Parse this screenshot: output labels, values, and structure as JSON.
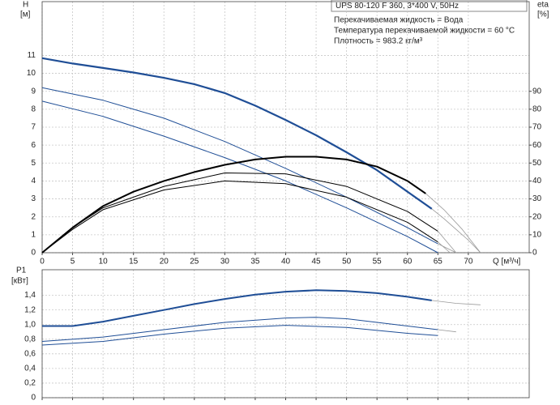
{
  "chart_data": [
    {
      "type": "line",
      "title": "UPS 80-120 F 360, 3*400 V, 50Hz",
      "annotations": [
        "Перекачиваемая жидкость = Вода",
        "Температура перекачиваемой жидкости = 60 °C",
        "Плотность = 983.2 кг/м³"
      ],
      "y_label": [
        "H",
        "[м]"
      ],
      "y2_label": [
        "eta",
        "[%]"
      ],
      "x_label": "Q [м³/ч]",
      "xlim": [
        0,
        80
      ],
      "xticks": [
        0,
        5,
        10,
        15,
        20,
        25,
        30,
        35,
        40,
        45,
        50,
        55,
        60,
        65,
        70
      ],
      "ylim": [
        0,
        14
      ],
      "yticks": [
        0,
        1,
        2,
        3,
        4,
        5,
        6,
        7,
        8,
        9,
        10,
        11
      ],
      "y2lim": [
        0,
        140
      ],
      "y2ticks": [
        0,
        10,
        20,
        30,
        40,
        50,
        60,
        70,
        80,
        90
      ],
      "grid": true,
      "series": [
        {
          "color": "#1f4e96",
          "width": 2.2,
          "axis": "y",
          "x": [
            0,
            5,
            10,
            15,
            20,
            25,
            30,
            35,
            40,
            45,
            50,
            55,
            60,
            64
          ],
          "values": [
            10.85,
            10.55,
            10.3,
            10.05,
            9.75,
            9.4,
            8.9,
            8.2,
            7.4,
            6.55,
            5.6,
            4.6,
            3.4,
            2.45
          ]
        },
        {
          "color": "#999999",
          "width": 0.8,
          "axis": "y",
          "x": [
            64,
            66,
            68,
            70,
            72
          ],
          "values": [
            2.45,
            1.9,
            1.3,
            0.7,
            0
          ]
        },
        {
          "color": "#1f4e96",
          "width": 1,
          "axis": "y",
          "x": [
            0,
            10,
            20,
            30,
            40,
            50,
            60,
            65
          ],
          "values": [
            9.2,
            8.5,
            7.5,
            6.2,
            4.7,
            3.1,
            1.4,
            0.5
          ]
        },
        {
          "color": "#999999",
          "width": 0.8,
          "axis": "y",
          "x": [
            65,
            68
          ],
          "values": [
            0.5,
            0
          ]
        },
        {
          "color": "#1f4e96",
          "width": 1,
          "axis": "y",
          "x": [
            0,
            10,
            20,
            30,
            40,
            50,
            60,
            65
          ],
          "values": [
            8.45,
            7.6,
            6.5,
            5.3,
            4.0,
            2.5,
            0.9,
            0
          ]
        },
        {
          "color": "#000000",
          "width": 2,
          "axis": "y2",
          "x": [
            0,
            5,
            10,
            15,
            20,
            25,
            30,
            35,
            40,
            45,
            50,
            55,
            60,
            63
          ],
          "values": [
            0,
            14,
            26,
            34,
            40,
            45,
            49,
            52,
            53.5,
            53.5,
            52,
            48,
            40,
            33
          ]
        },
        {
          "color": "#999999",
          "width": 0.8,
          "axis": "y2",
          "x": [
            63,
            66,
            69,
            72
          ],
          "values": [
            33,
            24,
            13,
            0
          ]
        },
        {
          "color": "#000000",
          "width": 1,
          "axis": "y2",
          "x": [
            0,
            5,
            10,
            20,
            30,
            40,
            50,
            60,
            65
          ],
          "values": [
            0,
            14,
            25,
            37,
            44.5,
            44,
            37,
            23,
            12
          ]
        },
        {
          "color": "#999999",
          "width": 0.8,
          "axis": "y2",
          "x": [
            65,
            68
          ],
          "values": [
            12,
            0
          ]
        },
        {
          "color": "#000000",
          "width": 1,
          "axis": "y2",
          "x": [
            0,
            5,
            10,
            20,
            30,
            40,
            50,
            60,
            65
          ],
          "values": [
            0,
            13,
            24,
            35,
            40,
            38.5,
            31,
            17,
            6
          ]
        },
        {
          "color": "#999999",
          "width": 0.8,
          "axis": "y2",
          "x": [
            65,
            67
          ],
          "values": [
            6,
            0
          ]
        }
      ]
    },
    {
      "type": "line",
      "y_label": [
        "P1",
        "[кВт]"
      ],
      "xlim": [
        0,
        80
      ],
      "xticks": [
        0,
        5,
        10,
        15,
        20,
        25,
        30,
        35,
        40,
        45,
        50,
        55,
        60,
        65,
        70
      ],
      "ylim": [
        0,
        1.75
      ],
      "yticks": [
        0,
        {
          "value": 0.2,
          "label": "0,2"
        },
        {
          "value": 0.4,
          "label": "0,4"
        },
        {
          "value": 0.6,
          "label": "0,6"
        },
        {
          "value": 0.8,
          "label": "0,8"
        },
        {
          "value": 1.0,
          "label": "1,0"
        },
        {
          "value": 1.2,
          "label": "1,2"
        },
        {
          "value": 1.4,
          "label": "1,4"
        }
      ],
      "grid": true,
      "series": [
        {
          "color": "#1f4e96",
          "width": 2,
          "x": [
            0,
            5,
            10,
            15,
            20,
            25,
            30,
            35,
            40,
            45,
            50,
            55,
            60,
            64
          ],
          "values": [
            0.98,
            0.98,
            1.04,
            1.12,
            1.2,
            1.28,
            1.35,
            1.41,
            1.45,
            1.47,
            1.46,
            1.43,
            1.38,
            1.33
          ]
        },
        {
          "color": "#999999",
          "width": 0.8,
          "x": [
            64,
            68,
            72
          ],
          "values": [
            1.33,
            1.29,
            1.27
          ]
        },
        {
          "color": "#1f4e96",
          "width": 1,
          "x": [
            0,
            10,
            20,
            30,
            40,
            45,
            50,
            60,
            65
          ],
          "values": [
            0.77,
            0.83,
            0.93,
            1.03,
            1.09,
            1.1,
            1.08,
            0.98,
            0.93
          ]
        },
        {
          "color": "#999999",
          "width": 0.8,
          "x": [
            65,
            68
          ],
          "values": [
            0.93,
            0.9
          ]
        },
        {
          "color": "#1f4e96",
          "width": 1,
          "x": [
            0,
            10,
            20,
            30,
            40,
            50,
            60,
            65
          ],
          "values": [
            0.72,
            0.77,
            0.87,
            0.95,
            0.99,
            0.96,
            0.88,
            0.85
          ]
        }
      ]
    }
  ]
}
